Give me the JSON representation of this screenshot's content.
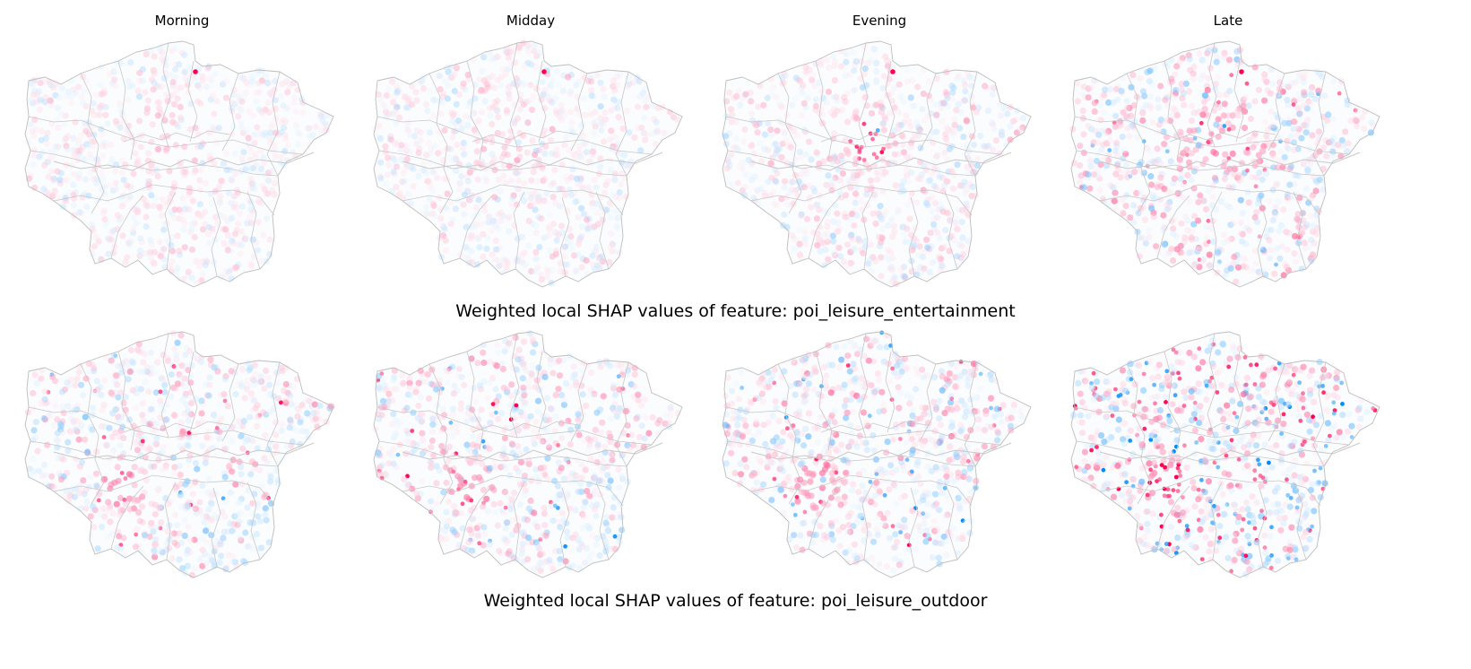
{
  "columns": [
    {
      "label": "Morning"
    },
    {
      "label": "Midday"
    },
    {
      "label": "Evening"
    },
    {
      "label": "Late"
    }
  ],
  "rows": [
    {
      "title": "Weighted local SHAP values of feature: poi_leisure_entertainment",
      "intensities": [
        0.3,
        0.35,
        0.4,
        0.75
      ],
      "hotspots": [
        "north-tip",
        "north-tip",
        "north-tip-and-central",
        "north-tip"
      ]
    },
    {
      "title": "Weighted local SHAP values of feature: poi_leisure_outdoor",
      "intensities": [
        0.55,
        0.55,
        0.65,
        1.0
      ],
      "hotspots": [
        "south-west",
        "south-west",
        "south-west",
        "south-west"
      ]
    }
  ],
  "colors": {
    "positive": "#ff0051",
    "negative": "#008bfb",
    "boundary": "#c8c8c8"
  }
}
